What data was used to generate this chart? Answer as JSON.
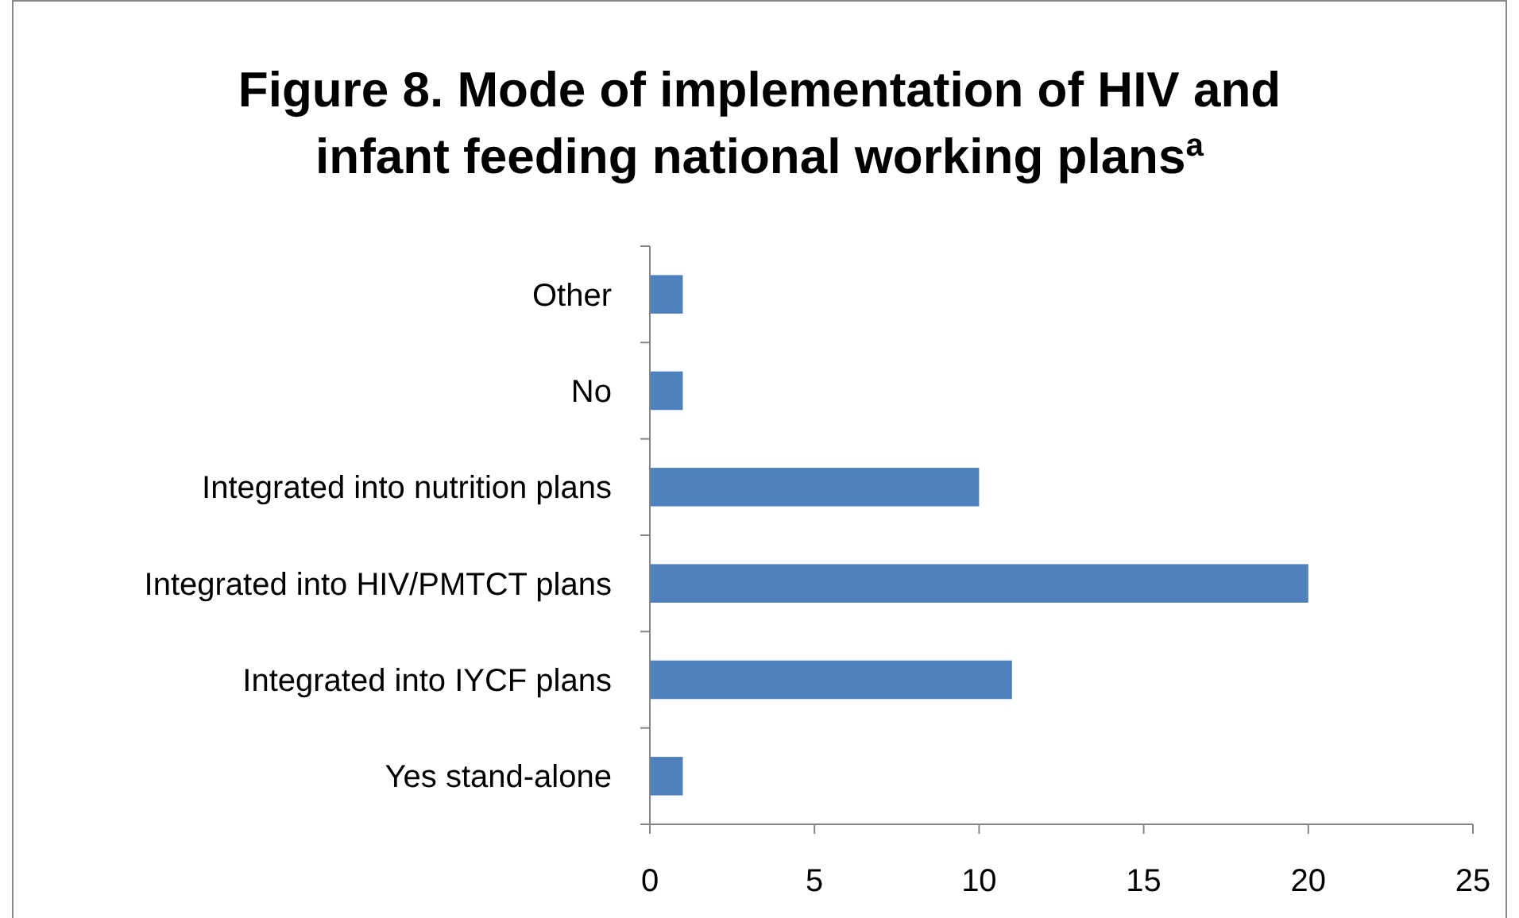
{
  "chart_data": {
    "type": "bar",
    "orientation": "horizontal",
    "title": "Figure 8. Mode of implementation of HIV and infant feeding national working plans$^{a}$",
    "categories": [
      "Other",
      "No",
      "Integrated into nutrition plans",
      "Integrated into HIV/PMTCT plans",
      "Integrated into IYCF plans",
      "Yes stand-alone"
    ],
    "values": [
      1,
      1,
      10,
      20,
      11,
      1
    ],
    "color": "#4f81bd",
    "xlim": [
      0,
      25
    ],
    "xticks": [
      0,
      5,
      10,
      15,
      20,
      25
    ],
    "grid": false
  }
}
